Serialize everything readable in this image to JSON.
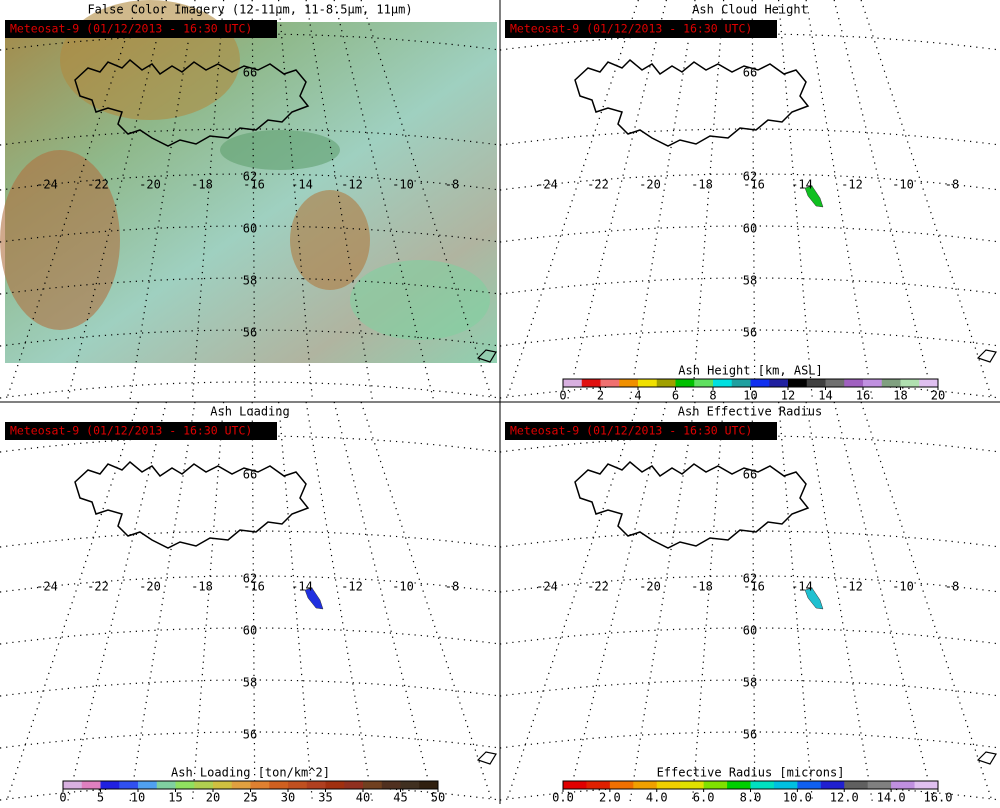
{
  "panels": [
    {
      "title": "False Color Imagery (12-11μm, 11-8.5μm, 11μm)",
      "stamp": "Meteosat-9  (01/12/2013 - 16:30 UTC)"
    },
    {
      "title": "Ash Cloud Height",
      "stamp": "Meteosat-9  (01/12/2013 - 16:30 UTC)",
      "colorbar": {
        "label": "Ash Height [km, ASL]",
        "ticks": [
          "0",
          "2",
          "4",
          "6",
          "8",
          "10",
          "12",
          "14",
          "16",
          "18",
          "20"
        ],
        "colors": [
          "#d8b0e0",
          "#e01010",
          "#f07070",
          "#f09000",
          "#f0e000",
          "#a0a000",
          "#00c000",
          "#60e060",
          "#00e0e0",
          "#20a0a0",
          "#1030f0",
          "#2020a0",
          "#000000",
          "#404040",
          "#707070",
          "#a060c0",
          "#c090e0",
          "#80a080",
          "#b0e0b0",
          "#e0c0f0"
        ]
      }
    },
    {
      "title": "Ash Loading",
      "stamp": "Meteosat-9  (01/12/2013 - 16:30 UTC)",
      "colorbar": {
        "label": "Ash Loading [ton/km^2]",
        "ticks": [
          "0",
          "5",
          "10",
          "15",
          "20",
          "25",
          "30",
          "35",
          "40",
          "45",
          "50"
        ],
        "colors": [
          "#d8b0e0",
          "#e080c0",
          "#2020e0",
          "#3050f0",
          "#50a0f0",
          "#80d0a0",
          "#90e060",
          "#b0d050",
          "#d0c040",
          "#e0a040",
          "#e08030",
          "#d06020",
          "#c05020",
          "#b04020",
          "#a03010",
          "#903020",
          "#704020",
          "#503020",
          "#403020",
          "#302010"
        ]
      }
    },
    {
      "title": "Ash Effective Radius",
      "stamp": "Meteosat-9  (01/12/2013 - 16:30 UTC)",
      "colorbar": {
        "label": "Effective Radius [microns]",
        "ticks": [
          "0.0",
          "2.0",
          "4.0",
          "6.0",
          "8.0",
          "10.0",
          "12.0",
          "14.0",
          "16.0"
        ],
        "colors": [
          "#e00000",
          "#e02000",
          "#f07000",
          "#f0a000",
          "#f0d000",
          "#e0e000",
          "#80e000",
          "#00d000",
          "#00e0c0",
          "#00c0e0",
          "#1060f0",
          "#2020d0",
          "#606060",
          "#808080",
          "#c090e0",
          "#e0c0f0"
        ]
      }
    }
  ],
  "map": {
    "lon_labels": [
      "-24",
      "-22",
      "-20",
      "-18",
      "-16",
      "-14",
      "-12",
      "-10",
      "-8"
    ],
    "lat_labels": [
      "66",
      "62",
      "60",
      "58",
      "56"
    ]
  }
}
